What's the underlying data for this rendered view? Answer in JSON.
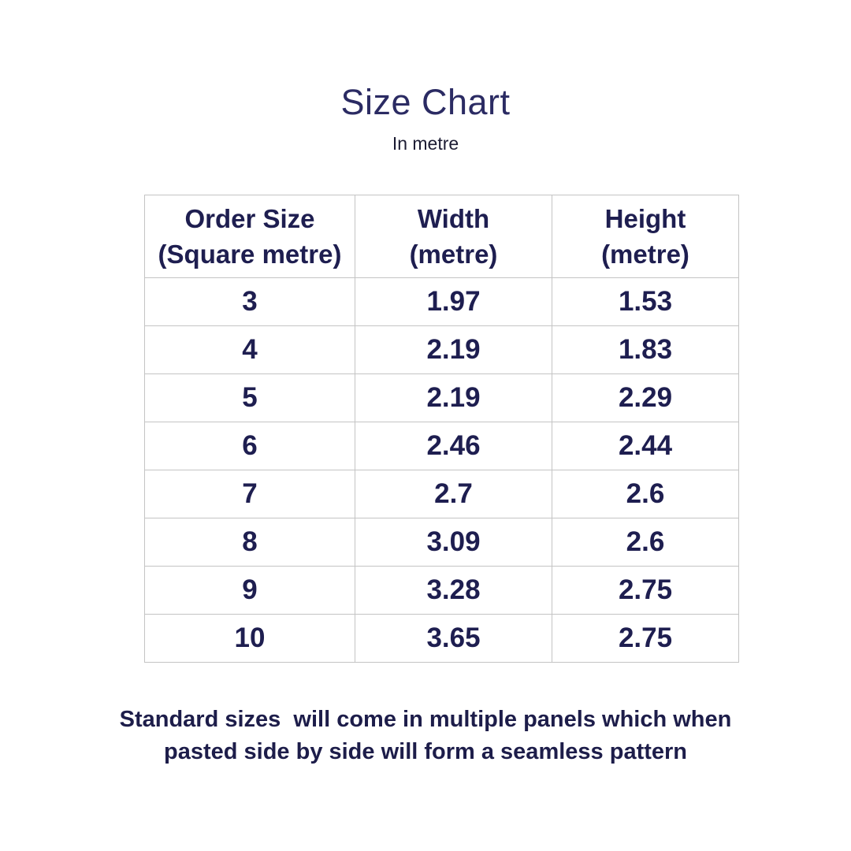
{
  "header": {
    "title": "Size Chart",
    "subtitle": "In metre"
  },
  "table": {
    "headers": [
      {
        "line1": "Order Size",
        "line2": "(Square metre)"
      },
      {
        "line1": "Width",
        "line2": "(metre)"
      },
      {
        "line1": "Height",
        "line2": "(metre)"
      }
    ]
  },
  "chart_data": {
    "type": "table",
    "title": "Size Chart",
    "subtitle": "In metre",
    "columns": [
      "Order Size (Square metre)",
      "Width (metre)",
      "Height (metre)"
    ],
    "rows": [
      [
        "3",
        "1.97",
        "1.53"
      ],
      [
        "4",
        "2.19",
        "1.83"
      ],
      [
        "5",
        "2.19",
        "2.29"
      ],
      [
        "6",
        "2.46",
        "2.44"
      ],
      [
        "7",
        "2.7",
        "2.6"
      ],
      [
        "8",
        "3.09",
        "2.6"
      ],
      [
        "9",
        "3.28",
        "2.75"
      ],
      [
        "10",
        "3.65",
        "2.75"
      ]
    ]
  },
  "footer": {
    "line1": "Standard sizes  will come in multiple panels which when",
    "line2": "pasted side by side will form a seamless pattern"
  },
  "colors": {
    "title_navy": "#2b2b63",
    "text_navy": "#1e1e50",
    "footer_navy": "#1d1d4a",
    "border_gray": "#c4c4c4",
    "background": "#ffffff"
  }
}
